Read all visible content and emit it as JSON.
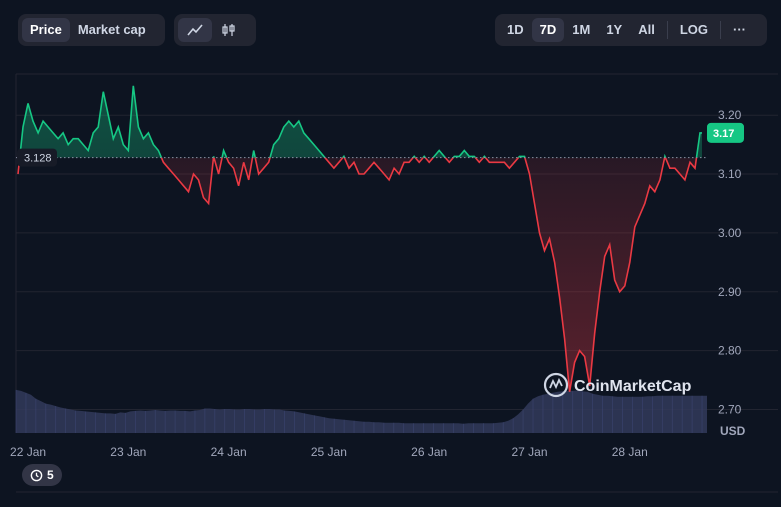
{
  "toolbar": {
    "metric_tabs": [
      {
        "label": "Price",
        "active": true
      },
      {
        "label": "Market cap",
        "active": false
      }
    ],
    "chart_types": [
      {
        "icon": "line-chart-icon",
        "active": true
      },
      {
        "icon": "candlestick-chart-icon",
        "active": false
      }
    ],
    "ranges": [
      {
        "label": "1D",
        "active": false
      },
      {
        "label": "7D",
        "active": true
      },
      {
        "label": "1M",
        "active": false
      },
      {
        "label": "1Y",
        "active": false
      },
      {
        "label": "All",
        "active": false
      }
    ],
    "log_label": "LOG",
    "more_label": "···"
  },
  "watermark": "CoinMarketCap",
  "badge": {
    "count": "5",
    "icon": "history-icon"
  },
  "colors": {
    "background": "#0d1421",
    "up": "#16c784",
    "down": "#ea3943",
    "volume": "#323a5a",
    "grid": "#222531"
  },
  "chart_data": {
    "type": "line",
    "baseline": 3.128,
    "baseline_label": "3.128",
    "last_label": "3.17",
    "y_ticks": [
      "3.20",
      "3.10",
      "3.00",
      "2.90",
      "2.80",
      "2.70"
    ],
    "y_tick_values": [
      3.2,
      3.1,
      3.0,
      2.9,
      2.8,
      2.7
    ],
    "ylim": [
      2.66,
      3.27
    ],
    "y_unit": "USD",
    "x_ticks": [
      "22 Jan",
      "23 Jan",
      "24 Jan",
      "25 Jan",
      "26 Jan",
      "27 Jan",
      "28 Jan"
    ],
    "x_tick_days": [
      0,
      1,
      2,
      3,
      4,
      5,
      6
    ],
    "xlim": [
      -0.12,
      6.77
    ],
    "grid": true,
    "series": [
      {
        "x": [
          -0.1,
          -0.05,
          0.0,
          0.05,
          0.1,
          0.15,
          0.2,
          0.25,
          0.3,
          0.35,
          0.4,
          0.45,
          0.5,
          0.55,
          0.6,
          0.65,
          0.7,
          0.75,
          0.8,
          0.85,
          0.9,
          0.95,
          1.0,
          1.05,
          1.1,
          1.15,
          1.2,
          1.25,
          1.3,
          1.35,
          1.4,
          1.45,
          1.5,
          1.55,
          1.6,
          1.65,
          1.7,
          1.75,
          1.8,
          1.85,
          1.9,
          1.95,
          2.0,
          2.05,
          2.1,
          2.15,
          2.2,
          2.25,
          2.3,
          2.35,
          2.4,
          2.45,
          2.5,
          2.55,
          2.6,
          2.65,
          2.7,
          2.75,
          2.8,
          2.85,
          2.9,
          2.95,
          3.0,
          3.05,
          3.1,
          3.15,
          3.2,
          3.25,
          3.3,
          3.35,
          3.4,
          3.45,
          3.5,
          3.55,
          3.6,
          3.65,
          3.7,
          3.75,
          3.8,
          3.85,
          3.9,
          3.95,
          4.0,
          4.05,
          4.1,
          4.15,
          4.2,
          4.25,
          4.3,
          4.35,
          4.4,
          4.45,
          4.5,
          4.55,
          4.6,
          4.65,
          4.7,
          4.75,
          4.8,
          4.85,
          4.9,
          4.95,
          5.0,
          5.05,
          5.1,
          5.15,
          5.2,
          5.25,
          5.3,
          5.35,
          5.4,
          5.45,
          5.5,
          5.55,
          5.6,
          5.65,
          5.7,
          5.75,
          5.8,
          5.85,
          5.9,
          5.95,
          6.0,
          6.05,
          6.1,
          6.15,
          6.2,
          6.25,
          6.3,
          6.35,
          6.4,
          6.45,
          6.5,
          6.55,
          6.6,
          6.65,
          6.7,
          6.72
        ],
        "values": [
          3.1,
          3.18,
          3.22,
          3.19,
          3.17,
          3.19,
          3.18,
          3.17,
          3.16,
          3.17,
          3.15,
          3.16,
          3.16,
          3.15,
          3.14,
          3.17,
          3.18,
          3.24,
          3.2,
          3.16,
          3.18,
          3.15,
          3.14,
          3.25,
          3.18,
          3.16,
          3.17,
          3.15,
          3.14,
          3.12,
          3.11,
          3.1,
          3.09,
          3.08,
          3.07,
          3.1,
          3.09,
          3.06,
          3.05,
          3.13,
          3.1,
          3.14,
          3.12,
          3.11,
          3.08,
          3.12,
          3.09,
          3.14,
          3.1,
          3.11,
          3.12,
          3.15,
          3.16,
          3.18,
          3.19,
          3.18,
          3.19,
          3.17,
          3.16,
          3.15,
          3.14,
          3.13,
          3.12,
          3.11,
          3.12,
          3.13,
          3.11,
          3.12,
          3.1,
          3.1,
          3.11,
          3.12,
          3.11,
          3.1,
          3.09,
          3.11,
          3.1,
          3.12,
          3.12,
          3.13,
          3.12,
          3.13,
          3.12,
          3.13,
          3.14,
          3.13,
          3.12,
          3.13,
          3.13,
          3.14,
          3.13,
          3.13,
          3.12,
          3.13,
          3.12,
          3.12,
          3.12,
          3.12,
          3.11,
          3.12,
          3.13,
          3.13,
          3.1,
          3.05,
          3.0,
          2.97,
          2.99,
          2.95,
          2.89,
          2.82,
          2.73,
          2.78,
          2.8,
          2.79,
          2.74,
          2.83,
          2.9,
          2.96,
          2.98,
          2.92,
          2.9,
          2.91,
          2.95,
          3.01,
          3.03,
          3.05,
          3.08,
          3.07,
          3.09,
          3.13,
          3.11,
          3.11,
          3.1,
          3.09,
          3.12,
          3.11,
          3.17,
          3.17
        ]
      }
    ],
    "volume": [
      88,
      86,
      82,
      78,
      70,
      65,
      60,
      58,
      55,
      52,
      50,
      48,
      46,
      45,
      44,
      43,
      42,
      41,
      40,
      40,
      39,
      42,
      41,
      44,
      45,
      46,
      45,
      46,
      47,
      46,
      45,
      46,
      46,
      45,
      45,
      44,
      46,
      47,
      50,
      50,
      49,
      48,
      49,
      49,
      48,
      48,
      49,
      49,
      48,
      48,
      49,
      49,
      48,
      48,
      46,
      45,
      44,
      42,
      40,
      38,
      36,
      34,
      32,
      30,
      29,
      28,
      27,
      26,
      25,
      24,
      23,
      23,
      22,
      22,
      21,
      21,
      21,
      21,
      20,
      20,
      20,
      20,
      20,
      20,
      20,
      20,
      20,
      20,
      20,
      20,
      19,
      20,
      20,
      20,
      20,
      20,
      20,
      21,
      22,
      25,
      30,
      38,
      48,
      60,
      70,
      75,
      78,
      80,
      82,
      84,
      85,
      86,
      86,
      87,
      85,
      84,
      80,
      78,
      76,
      76,
      75,
      74,
      74,
      74,
      74,
      74,
      74,
      75,
      75,
      76,
      76,
      76,
      76,
      76,
      76,
      76,
      76,
      76,
      76,
      76
    ]
  }
}
